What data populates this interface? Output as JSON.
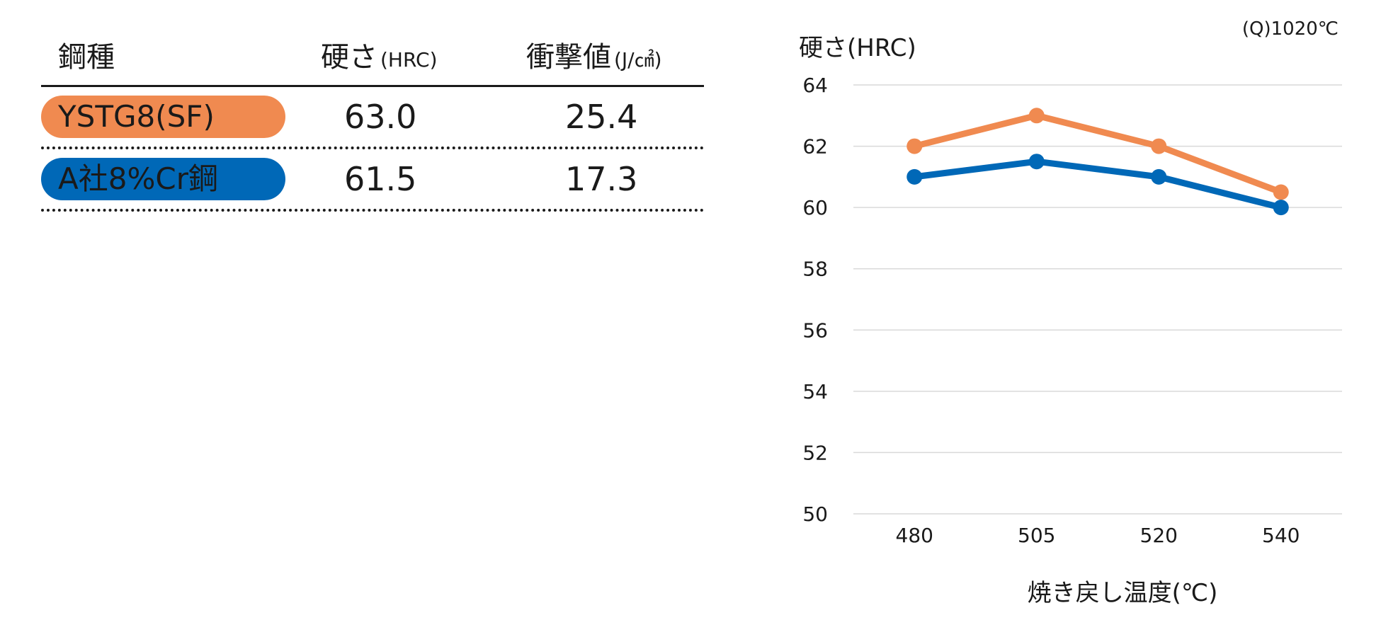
{
  "table": {
    "headers": {
      "steel": "鋼種",
      "hardness": "硬さ",
      "hardness_unit": "(HRC)",
      "impact": "衝撃値",
      "impact_unit": "(J/㎠)"
    },
    "rows": [
      {
        "name": "YSTG8(SF)",
        "hardness": "63.0",
        "impact": "25.4",
        "color": "#f08a50"
      },
      {
        "name": "A社8%Cr鋼",
        "hardness": "61.5",
        "impact": "17.3",
        "color": "#0068b7"
      }
    ]
  },
  "chart_data": {
    "type": "line",
    "categories": [
      "480",
      "505",
      "520",
      "540"
    ],
    "series": [
      {
        "values": [
          62,
          63,
          62,
          60.5
        ],
        "color": "#f08a50"
      },
      {
        "values": [
          61,
          61.5,
          61,
          60
        ],
        "color": "#0068b7"
      }
    ],
    "ylabel": "硬さ(HRC)",
    "xlabel": "焼き戻し温度(℃)",
    "note": "(Q)1020℃",
    "ylim": [
      50,
      64
    ],
    "yticks": [
      "50",
      "52",
      "54",
      "56",
      "58",
      "60",
      "62",
      "64"
    ],
    "grid": true
  }
}
